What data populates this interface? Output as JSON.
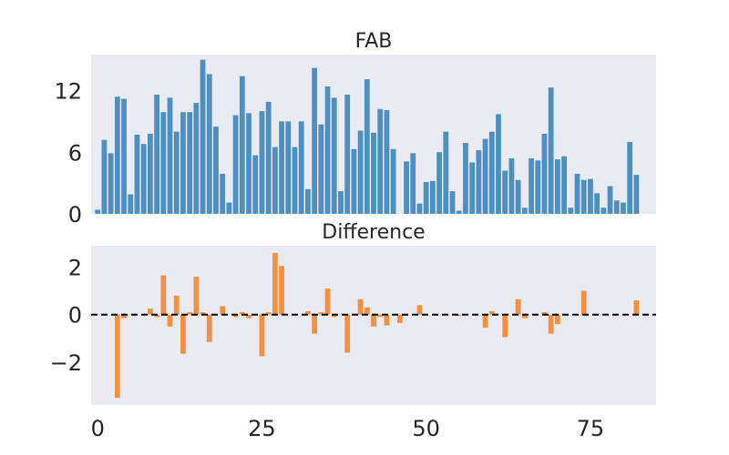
{
  "chart_data": [
    {
      "type": "bar",
      "title": "FAB",
      "xlabel": "",
      "ylabel": "",
      "xlim": [
        -1,
        85
      ],
      "ylim": [
        0,
        15.5
      ],
      "yticks": [
        0,
        6,
        12
      ],
      "grid": false,
      "color": "#4c8fc0",
      "x": [
        0,
        1,
        2,
        3,
        4,
        5,
        6,
        7,
        8,
        9,
        10,
        11,
        12,
        13,
        14,
        15,
        16,
        17,
        18,
        19,
        20,
        21,
        22,
        23,
        24,
        25,
        26,
        27,
        28,
        29,
        30,
        31,
        32,
        33,
        34,
        35,
        36,
        37,
        38,
        39,
        40,
        41,
        42,
        43,
        44,
        45,
        46,
        47,
        48,
        49,
        50,
        51,
        52,
        53,
        54,
        55,
        56,
        57,
        58,
        59,
        60,
        61,
        62,
        63,
        64,
        65,
        66,
        67,
        68,
        69,
        70,
        71,
        72,
        73,
        74,
        75,
        76,
        77,
        78,
        79,
        80,
        81,
        82,
        83
      ],
      "values": [
        0.4,
        7.2,
        5.9,
        11.4,
        11.2,
        1.9,
        7.7,
        6.8,
        7.8,
        11.6,
        9.9,
        11.3,
        8.0,
        9.9,
        9.9,
        10.8,
        15.0,
        13.6,
        8.5,
        3.9,
        1.1,
        9.6,
        13.4,
        9.8,
        5.7,
        10.0,
        10.9,
        6.5,
        9.0,
        9.0,
        6.5,
        9.0,
        2.4,
        14.2,
        8.7,
        12.4,
        11.3,
        2.2,
        11.6,
        6.3,
        8.1,
        13.1,
        7.9,
        10.2,
        10.1,
        6.3,
        0,
        5.1,
        5.9,
        1.0,
        3.1,
        3.2,
        6.0,
        8.0,
        2.2,
        0.3,
        6.9,
        5.0,
        6.2,
        7.3,
        8.0,
        9.7,
        4.2,
        5.4,
        3.3,
        0.6,
        5.4,
        5.2,
        7.8,
        12.3,
        5.3,
        5.6,
        0.6,
        3.9,
        3.3,
        3.4,
        2.0,
        0.6,
        2.7,
        1.3,
        1.1,
        7.0,
        3.8,
        0
      ]
    },
    {
      "type": "bar",
      "title": "Difference",
      "xlabel": "",
      "ylabel": "",
      "xlim": [
        -1,
        85
      ],
      "ylim": [
        -3.8,
        2.9
      ],
      "yticks": [
        -2,
        0,
        2
      ],
      "xticks": [
        0,
        25,
        50,
        75
      ],
      "grid": false,
      "reference_line": {
        "y": 0,
        "style": "dashed",
        "color": "#000000"
      },
      "color": "#f5913e",
      "x": [
        0,
        1,
        2,
        3,
        4,
        5,
        6,
        7,
        8,
        9,
        10,
        11,
        12,
        13,
        14,
        15,
        16,
        17,
        18,
        19,
        20,
        21,
        22,
        23,
        24,
        25,
        26,
        27,
        28,
        29,
        30,
        31,
        32,
        33,
        34,
        35,
        36,
        37,
        38,
        39,
        40,
        41,
        42,
        43,
        44,
        45,
        46,
        47,
        48,
        49,
        50,
        51,
        52,
        53,
        54,
        55,
        56,
        57,
        58,
        59,
        60,
        61,
        62,
        63,
        64,
        65,
        66,
        67,
        68,
        69,
        70,
        71,
        72,
        73,
        74,
        75,
        76,
        77,
        78,
        79,
        80,
        81,
        82,
        83
      ],
      "values": [
        0,
        0,
        0,
        -3.5,
        -0.15,
        0,
        0,
        0,
        0.25,
        -0.1,
        1.65,
        -0.5,
        0.8,
        -1.65,
        0.1,
        1.6,
        0.1,
        -1.15,
        0,
        0.35,
        0,
        -0.1,
        0.1,
        -0.15,
        0,
        -1.75,
        0.1,
        2.6,
        2.05,
        0,
        0,
        0,
        0.15,
        -0.8,
        0.1,
        1.1,
        -0.1,
        0,
        -1.6,
        0,
        0.65,
        0.3,
        -0.5,
        -0.1,
        -0.45,
        0,
        -0.35,
        0,
        0,
        0.4,
        0,
        0,
        0,
        0,
        0,
        -0.05,
        0,
        0,
        0,
        -0.55,
        0.15,
        0,
        -0.95,
        0,
        0.65,
        -0.15,
        0,
        0,
        0.1,
        -0.8,
        -0.4,
        0,
        0,
        0,
        1.0,
        0,
        0,
        0,
        0,
        0,
        0,
        0,
        0.6,
        0
      ]
    }
  ]
}
